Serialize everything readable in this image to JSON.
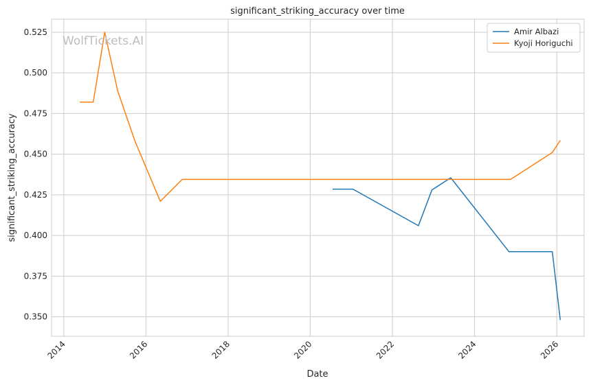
{
  "chart_data": {
    "type": "line",
    "title": "significant_striking_accuracy over time",
    "xlabel": "Date",
    "ylabel": "significant_striking_accuracy",
    "watermark": "WolfTickets.AI",
    "xlim": [
      "2013-09-14",
      "2026-09-01"
    ],
    "ylim": [
      0.338,
      0.533
    ],
    "x_ticks": [
      {
        "value": "2014-01-01",
        "label": "2014"
      },
      {
        "value": "2016-01-01",
        "label": "2016"
      },
      {
        "value": "2018-01-01",
        "label": "2018"
      },
      {
        "value": "2020-01-01",
        "label": "2020"
      },
      {
        "value": "2022-01-01",
        "label": "2022"
      },
      {
        "value": "2024-01-01",
        "label": "2024"
      },
      {
        "value": "2026-01-01",
        "label": "2026"
      }
    ],
    "y_ticks": [
      {
        "value": 0.35,
        "label": "0.350"
      },
      {
        "value": 0.375,
        "label": "0.375"
      },
      {
        "value": 0.4,
        "label": "0.400"
      },
      {
        "value": 0.425,
        "label": "0.425"
      },
      {
        "value": 0.45,
        "label": "0.450"
      },
      {
        "value": 0.475,
        "label": "0.475"
      },
      {
        "value": 0.5,
        "label": "0.500"
      },
      {
        "value": 0.525,
        "label": "0.525"
      }
    ],
    "grid": true,
    "legend_position": "top-right",
    "series": [
      {
        "name": "Amir Albazi",
        "color": "#1f77b4",
        "points": [
          {
            "x": "2020-07-18",
            "y": 0.4285
          },
          {
            "x": "2021-01-15",
            "y": 0.4285
          },
          {
            "x": "2022-08-20",
            "y": 0.406
          },
          {
            "x": "2022-12-18",
            "y": 0.428
          },
          {
            "x": "2023-06-03",
            "y": 0.4355
          },
          {
            "x": "2024-11-02",
            "y": 0.39
          },
          {
            "x": "2025-11-22",
            "y": 0.39
          },
          {
            "x": "2026-02-01",
            "y": 0.348
          }
        ]
      },
      {
        "name": "Kyoji Horiguchi",
        "color": "#ff7f0e",
        "points": [
          {
            "x": "2014-05-24",
            "y": 0.482
          },
          {
            "x": "2014-09-20",
            "y": 0.482
          },
          {
            "x": "2014-12-31",
            "y": 0.525
          },
          {
            "x": "2015-04-25",
            "y": 0.489
          },
          {
            "x": "2015-09-26",
            "y": 0.458
          },
          {
            "x": "2016-05-08",
            "y": 0.421
          },
          {
            "x": "2016-11-19",
            "y": 0.4345
          },
          {
            "x": "2024-11-16",
            "y": 0.4345
          },
          {
            "x": "2025-11-22",
            "y": 0.451
          },
          {
            "x": "2026-02-01",
            "y": 0.4585
          }
        ]
      }
    ]
  }
}
